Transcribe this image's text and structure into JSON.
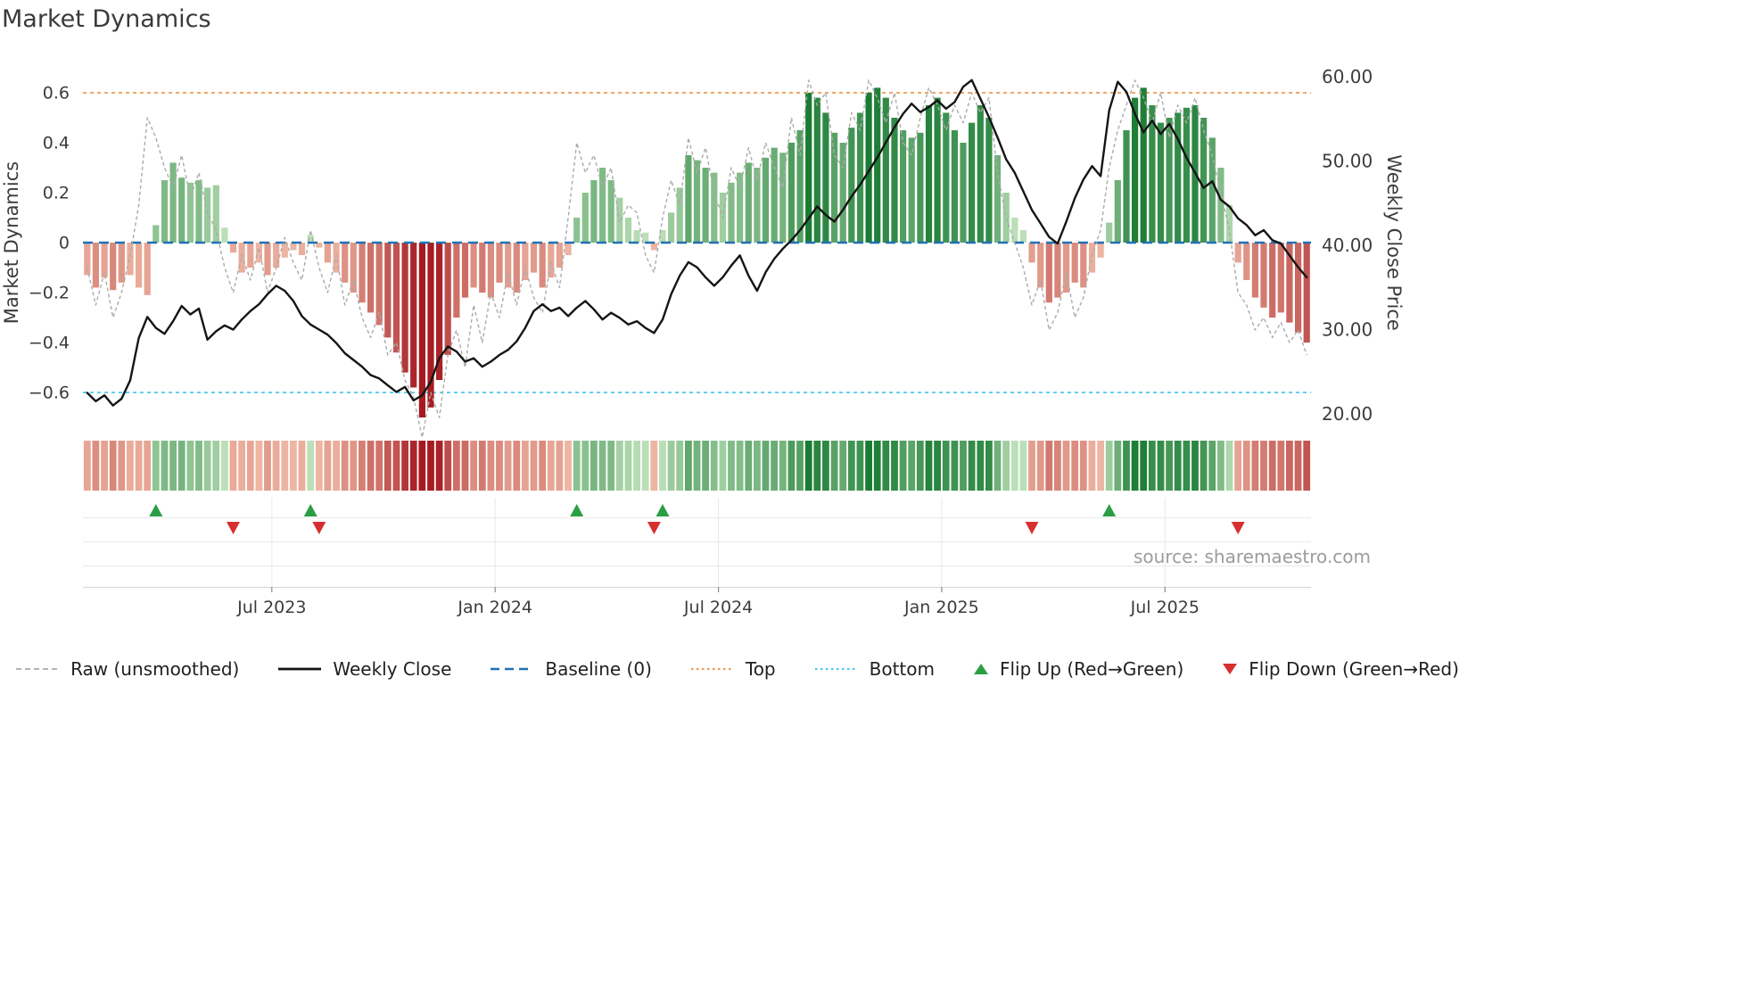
{
  "title": "Market Dynamics",
  "source": "source: sharemaestro.com",
  "legend": {
    "items": [
      {
        "key": "raw",
        "label": "Raw (unsmoothed)",
        "type": "dash",
        "color": "#a9a9a9"
      },
      {
        "key": "weekly-close",
        "label": "Weekly Close",
        "type": "solid",
        "color": "#111111"
      },
      {
        "key": "baseline",
        "label": "Baseline (0)",
        "type": "dash-bold",
        "color": "#2171b5"
      },
      {
        "key": "top",
        "label": "Top",
        "type": "dot",
        "color": "#f09b51"
      },
      {
        "key": "bottom",
        "label": "Bottom",
        "type": "dot",
        "color": "#4ec9ec"
      },
      {
        "key": "flip-up",
        "label": "Flip Up (Red→Green)",
        "type": "tri-up",
        "color": "#2b9e44"
      },
      {
        "key": "flip-down",
        "label": "Flip Down (Green→Red)",
        "type": "tri-down",
        "color": "#d62f2f"
      }
    ]
  },
  "chart_data": {
    "type": "combo",
    "subtype": [
      "bar",
      "line",
      "heatmap",
      "markers"
    ],
    "title": "Market Dynamics",
    "n_weeks": 143,
    "x_axis": {
      "ticks": [
        {
          "label": "Jul 2023",
          "week": 22
        },
        {
          "label": "Jan 2024",
          "week": 48
        },
        {
          "label": "Jul 2024",
          "week": 74
        },
        {
          "label": "Jan 2025",
          "week": 100
        },
        {
          "label": "Jul 2025",
          "week": 126
        }
      ]
    },
    "left_axis": {
      "label": "Market Dynamics",
      "range": [
        -0.78,
        0.75
      ],
      "ticks": [
        {
          "v": 0.6,
          "label": "0.6"
        },
        {
          "v": 0.4,
          "label": "0.4"
        },
        {
          "v": 0.2,
          "label": "0.2"
        },
        {
          "v": 0,
          "label": "0"
        },
        {
          "v": -0.2,
          "label": "−0.2"
        },
        {
          "v": -0.4,
          "label": "−0.4"
        },
        {
          "v": -0.6,
          "label": "−0.6"
        }
      ]
    },
    "right_axis": {
      "label": "Weekly Close Price",
      "range": [
        18,
        62
      ],
      "ticks": [
        {
          "v": 60,
          "label": "60.00"
        },
        {
          "v": 50,
          "label": "50.00"
        },
        {
          "v": 40,
          "label": "40.00"
        },
        {
          "v": 30,
          "label": "30.00"
        },
        {
          "v": 20,
          "label": "20.00"
        }
      ]
    },
    "reference_lines": {
      "baseline": 0,
      "top": 0.6,
      "bottom": -0.6
    },
    "series": {
      "oscillator": [
        -0.13,
        -0.18,
        -0.14,
        -0.19,
        -0.16,
        -0.13,
        -0.18,
        -0.21,
        0.07,
        0.25,
        0.32,
        0.26,
        0.24,
        0.25,
        0.22,
        0.23,
        0.06,
        -0.04,
        -0.12,
        -0.1,
        -0.08,
        -0.13,
        -0.1,
        -0.06,
        -0.03,
        -0.05,
        0.03,
        -0.02,
        -0.08,
        -0.12,
        -0.16,
        -0.2,
        -0.24,
        -0.28,
        -0.33,
        -0.38,
        -0.44,
        -0.52,
        -0.58,
        -0.7,
        -0.66,
        -0.55,
        -0.45,
        -0.3,
        -0.22,
        -0.18,
        -0.2,
        -0.22,
        -0.16,
        -0.18,
        -0.2,
        -0.15,
        -0.12,
        -0.18,
        -0.14,
        -0.1,
        -0.05,
        0.1,
        0.2,
        0.25,
        0.3,
        0.25,
        0.18,
        0.1,
        0.05,
        0.04,
        -0.03,
        0.05,
        0.12,
        0.22,
        0.35,
        0.33,
        0.3,
        0.28,
        0.2,
        0.24,
        0.28,
        0.32,
        0.3,
        0.34,
        0.38,
        0.36,
        0.4,
        0.45,
        0.6,
        0.58,
        0.52,
        0.44,
        0.4,
        0.46,
        0.52,
        0.6,
        0.62,
        0.58,
        0.5,
        0.45,
        0.42,
        0.44,
        0.55,
        0.58,
        0.52,
        0.45,
        0.4,
        0.48,
        0.55,
        0.5,
        0.35,
        0.2,
        0.1,
        0.05,
        -0.08,
        -0.18,
        -0.24,
        -0.22,
        -0.2,
        -0.16,
        -0.18,
        -0.12,
        -0.06,
        0.08,
        0.25,
        0.45,
        0.58,
        0.62,
        0.55,
        0.48,
        0.5,
        0.52,
        0.54,
        0.55,
        0.5,
        0.42,
        0.3,
        0.15,
        -0.08,
        -0.15,
        -0.22,
        -0.26,
        -0.3,
        -0.28,
        -0.32,
        -0.36,
        -0.4
      ],
      "raw": [
        -0.1,
        -0.25,
        -0.12,
        -0.3,
        -0.2,
        -0.05,
        0.15,
        0.5,
        0.42,
        0.3,
        0.22,
        0.35,
        0.18,
        0.28,
        0.12,
        0.05,
        -0.1,
        -0.2,
        -0.05,
        -0.15,
        -0.02,
        -0.2,
        -0.1,
        0.02,
        -0.08,
        -0.15,
        0.05,
        -0.1,
        -0.2,
        -0.05,
        -0.25,
        -0.15,
        -0.3,
        -0.38,
        -0.28,
        -0.45,
        -0.4,
        -0.55,
        -0.62,
        -0.78,
        -0.6,
        -0.7,
        -0.45,
        -0.35,
        -0.5,
        -0.25,
        -0.4,
        -0.2,
        -0.3,
        -0.12,
        -0.25,
        -0.1,
        -0.22,
        -0.28,
        -0.08,
        -0.18,
        0.1,
        0.4,
        0.28,
        0.35,
        0.22,
        0.3,
        0.08,
        0.15,
        0.12,
        -0.05,
        -0.12,
        0.1,
        0.25,
        0.15,
        0.42,
        0.28,
        0.38,
        0.2,
        0.1,
        0.3,
        0.22,
        0.38,
        0.25,
        0.4,
        0.3,
        0.22,
        0.5,
        0.35,
        0.65,
        0.55,
        0.6,
        0.35,
        0.3,
        0.52,
        0.45,
        0.65,
        0.58,
        0.48,
        0.6,
        0.4,
        0.35,
        0.5,
        0.62,
        0.55,
        0.45,
        0.55,
        0.48,
        0.6,
        0.52,
        0.58,
        0.28,
        0.1,
        0,
        -0.1,
        -0.25,
        -0.15,
        -0.35,
        -0.28,
        -0.12,
        -0.3,
        -0.22,
        -0.05,
        0.05,
        0.3,
        0.45,
        0.55,
        0.65,
        0.58,
        0.48,
        0.6,
        0.42,
        0.55,
        0.48,
        0.58,
        0.45,
        0.35,
        0.2,
        0.05,
        -0.2,
        -0.25,
        -0.35,
        -0.3,
        -0.38,
        -0.32,
        -0.4,
        -0.35,
        -0.45
      ],
      "weekly_close": [
        22.5,
        21.5,
        22.2,
        21.0,
        21.8,
        24.0,
        29.0,
        31.5,
        30.2,
        29.5,
        31.0,
        32.8,
        31.8,
        32.5,
        28.8,
        29.8,
        30.5,
        30.0,
        31.2,
        32.2,
        33.0,
        34.2,
        35.2,
        34.6,
        33.4,
        31.6,
        30.6,
        30.0,
        29.4,
        28.4,
        27.2,
        26.4,
        25.6,
        24.6,
        24.2,
        23.4,
        22.6,
        23.2,
        21.6,
        22.2,
        23.8,
        26.6,
        28.0,
        27.4,
        26.2,
        26.6,
        25.6,
        26.2,
        27.0,
        27.6,
        28.6,
        30.2,
        32.2,
        33.0,
        32.2,
        32.6,
        31.6,
        32.6,
        33.4,
        32.4,
        31.2,
        32.0,
        31.4,
        30.6,
        31.0,
        30.2,
        29.6,
        31.2,
        34.2,
        36.4,
        38.0,
        37.4,
        36.2,
        35.2,
        36.2,
        37.6,
        38.8,
        36.4,
        34.6,
        36.8,
        38.4,
        39.6,
        40.6,
        41.8,
        43.2,
        44.6,
        43.6,
        42.8,
        44.2,
        45.8,
        47.2,
        48.8,
        50.4,
        52.2,
        54.0,
        55.6,
        56.8,
        55.8,
        56.4,
        57.2,
        56.2,
        57.0,
        58.8,
        59.6,
        57.4,
        55.2,
        52.8,
        50.2,
        48.6,
        46.4,
        44.2,
        42.6,
        41.0,
        40.2,
        42.8,
        45.6,
        47.8,
        49.4,
        48.2,
        56.0,
        59.4,
        58.2,
        55.6,
        53.4,
        54.8,
        53.2,
        54.4,
        52.6,
        50.4,
        48.6,
        46.8,
        47.6,
        45.4,
        44.6,
        43.2,
        42.4,
        41.2,
        41.8,
        40.6,
        40.2,
        38.8,
        37.4,
        36.2
      ]
    },
    "flip_up_weeks": [
      8,
      26,
      57,
      67,
      119
    ],
    "flip_down_weeks": [
      17,
      27,
      66,
      110,
      134
    ],
    "colors": {
      "bar_green_light": "#cdeac6",
      "bar_green_dark": "#14782e",
      "bar_red_light": "#f6c6b0",
      "bar_red_dark": "#a51a20",
      "weekly_close": "#151515",
      "raw": "#ababab",
      "baseline": "#2171b5",
      "top": "#f09b51",
      "bottom": "#4ec9ec",
      "flip_up": "#2b9e44",
      "flip_down": "#d62f2f",
      "grid": "#e9e9e9",
      "axis_line": "#d9d9d9",
      "tick_text": "#3c3c3c",
      "source_text": "#9c9c9c"
    }
  }
}
